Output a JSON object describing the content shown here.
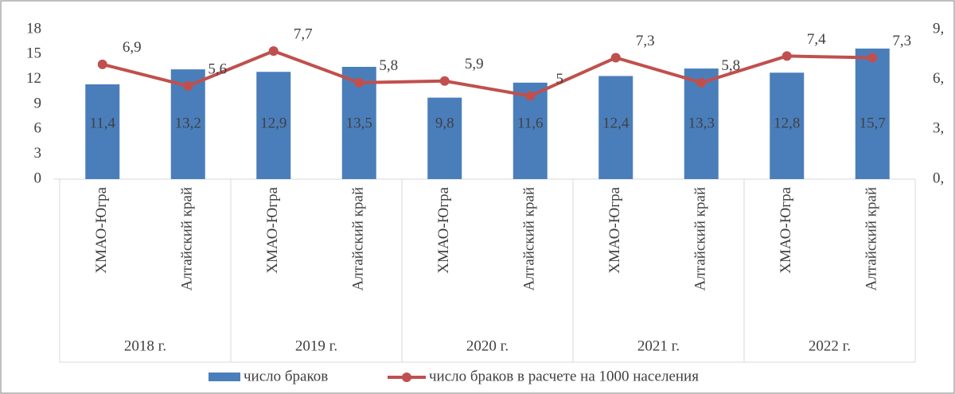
{
  "chart_data": {
    "type": "bar_line",
    "categories": [
      "ХМАО-Югра",
      "Алтайский край",
      "ХМАО-Югра",
      "Алтайский край",
      "ХМАО-Югра",
      "Алтайский край",
      "ХМАО-Югра",
      "Алтайский край",
      "ХМАО-Югра",
      "Алтайский край"
    ],
    "group_labels": [
      "2018 г.",
      "2019 г.",
      "2020 г.",
      "2021 г.",
      "2022 г."
    ],
    "series": [
      {
        "name": "число браков",
        "type": "bar",
        "color": "#4a7ebb",
        "values": [
          11.4,
          13.2,
          12.9,
          13.5,
          9.8,
          11.6,
          12.4,
          13.3,
          12.8,
          15.7
        ],
        "value_labels": [
          "11,4",
          "13,2",
          "12,9",
          "13,5",
          "9,8",
          "11,6",
          "12,4",
          "13,3",
          "12,8",
          "15,7"
        ]
      },
      {
        "name": "число браков в расчете на 1000 населения",
        "type": "line",
        "axis": "y2",
        "color": "#c0504d",
        "values": [
          6.9,
          5.6,
          7.7,
          5.8,
          5.9,
          5,
          7.3,
          5.8,
          7.4,
          7.3
        ],
        "value_labels": [
          "6,9",
          "5,6",
          "7,7",
          "5,8",
          "5,9",
          "5",
          "7,3",
          "5,8",
          "7,4",
          "7,3"
        ]
      }
    ],
    "ylim": [
      0,
      18
    ],
    "yticks": [
      0,
      3,
      6,
      9,
      12,
      15,
      18
    ],
    "y2lim": [
      0,
      9
    ],
    "y2ticks": [
      {
        "value": 0,
        "label": "0,"
      },
      {
        "value": 3,
        "label": "3,"
      },
      {
        "value": 6,
        "label": "6,"
      },
      {
        "value": 9,
        "label": "9,"
      }
    ],
    "legend": "bottom"
  }
}
